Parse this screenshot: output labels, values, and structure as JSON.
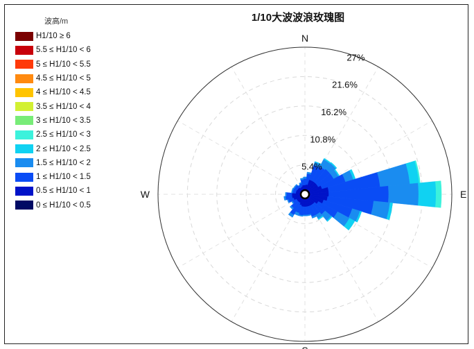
{
  "chart_data": {
    "type": "rose",
    "title": "1/10大波波浪玫瑰图",
    "legend_title": "波高/m",
    "directions": [
      "N",
      "E",
      "S",
      "W"
    ],
    "radial_ticks": [
      "5.4%",
      "10.8%",
      "16.2%",
      "21.6%",
      "27%"
    ],
    "radial_values": [
      5.4,
      10.8,
      16.2,
      21.6,
      27
    ],
    "rmax": 27,
    "legend": [
      {
        "label": "H1/10 ≥ 6",
        "color": "#7a0000"
      },
      {
        "label": "5.5 ≤ H1/10 < 6",
        "color": "#c8000a"
      },
      {
        "label": "5 ≤ H1/10 < 5.5",
        "color": "#ff3a0a"
      },
      {
        "label": "4.5 ≤ H1/10 < 5",
        "color": "#ff8a10"
      },
      {
        "label": "4 ≤ H1/10 < 4.5",
        "color": "#ffc400"
      },
      {
        "label": "3.5 ≤ H1/10 < 4",
        "color": "#d2f032"
      },
      {
        "label": "3 ≤ H1/10 < 3.5",
        "color": "#78ec78"
      },
      {
        "label": "2.5 ≤ H1/10 < 3",
        "color": "#3cf2dc"
      },
      {
        "label": "2 ≤ H1/10 < 2.5",
        "color": "#10d2f2"
      },
      {
        "label": "1.5 ≤ H1/10 < 2",
        "color": "#1a8cf0"
      },
      {
        "label": "1 ≤ H1/10 < 1.5",
        "color": "#0a4cf5"
      },
      {
        "label": "0.5 ≤ H1/10 < 1",
        "color": "#0012c8"
      },
      {
        "label": "0 ≤ H1/10 < 0.5",
        "color": "#000a64"
      }
    ],
    "bin_order": [
      "0-0.5",
      "0.5-1",
      "1-1.5",
      "1.5-2",
      "2-2.5",
      "2.5-3"
    ],
    "bin_colors": [
      "#000a64",
      "#0012c8",
      "#0a4cf5",
      "#1a8cf0",
      "#10d2f2",
      "#3cf2dc"
    ],
    "sectors": [
      {
        "dir": 0,
        "values": [
          0.2,
          1.5,
          1.2,
          0.3,
          0,
          0
        ]
      },
      {
        "dir": 11.25,
        "values": [
          0.2,
          1.6,
          2.0,
          0.3,
          0,
          0
        ]
      },
      {
        "dir": 22.5,
        "values": [
          0.3,
          2.5,
          2.8,
          0.6,
          0.1,
          0
        ]
      },
      {
        "dir": 33.75,
        "values": [
          0.3,
          2.5,
          3.0,
          1.5,
          0.2,
          0
        ]
      },
      {
        "dir": 45,
        "values": [
          0.3,
          2.5,
          3.2,
          1.4,
          0.2,
          0
        ]
      },
      {
        "dir": 56.25,
        "values": [
          0.3,
          2.5,
          3.2,
          1.0,
          0.2,
          0
        ]
      },
      {
        "dir": 67.5,
        "values": [
          0.3,
          3.0,
          4.5,
          1.5,
          0.4,
          0
        ]
      },
      {
        "dir": 78.75,
        "values": [
          0.4,
          4.0,
          9.5,
          5.5,
          1.7,
          0.2
        ]
      },
      {
        "dir": 90,
        "values": [
          0.4,
          4.0,
          11.0,
          5.5,
          3.2,
          1.0
        ]
      },
      {
        "dir": 101.25,
        "values": [
          0.4,
          3.8,
          8.5,
          3.0,
          0.5,
          0
        ]
      },
      {
        "dir": 112.5,
        "values": [
          0.4,
          3.2,
          5.5,
          1.5,
          0.3,
          0
        ]
      },
      {
        "dir": 123.75,
        "values": [
          0.3,
          2.5,
          4.0,
          2.5,
          1.1,
          0
        ]
      },
      {
        "dir": 135,
        "values": [
          0.3,
          2.0,
          2.5,
          1.5,
          0.2,
          0
        ]
      },
      {
        "dir": 146.25,
        "values": [
          0.3,
          2.0,
          2.0,
          0.8,
          0.2,
          0
        ]
      },
      {
        "dir": 157.5,
        "values": [
          0.3,
          2.0,
          2.0,
          0.3,
          0,
          0
        ]
      },
      {
        "dir": 168.75,
        "values": [
          0.3,
          2.0,
          1.5,
          0.2,
          0,
          0
        ]
      },
      {
        "dir": 180,
        "values": [
          0.3,
          2.0,
          1.5,
          0.2,
          0,
          0
        ]
      },
      {
        "dir": 191.25,
        "values": [
          0.3,
          2.0,
          1.6,
          0.2,
          0,
          0
        ]
      },
      {
        "dir": 202.5,
        "values": [
          0.3,
          1.8,
          1.5,
          0.5,
          0,
          0
        ]
      },
      {
        "dir": 213.75,
        "values": [
          0.3,
          1.5,
          2.5,
          0.5,
          0,
          0
        ]
      },
      {
        "dir": 225,
        "values": [
          0.3,
          1.5,
          1.5,
          0.3,
          0,
          0
        ]
      },
      {
        "dir": 236.25,
        "values": [
          0.3,
          1.5,
          0.8,
          0.2,
          0,
          0
        ]
      },
      {
        "dir": 247.5,
        "values": [
          0.4,
          1.8,
          1.0,
          0.2,
          0,
          0
        ]
      },
      {
        "dir": 258.75,
        "values": [
          0.4,
          2.0,
          1.2,
          0.3,
          0,
          0
        ]
      },
      {
        "dir": 270,
        "values": [
          0.4,
          2.0,
          1.0,
          0.2,
          0,
          0
        ]
      },
      {
        "dir": 281.25,
        "values": [
          0.3,
          1.4,
          0.6,
          0.2,
          0,
          0
        ]
      },
      {
        "dir": 292.5,
        "values": [
          0.3,
          1.4,
          0.6,
          0.2,
          0,
          0
        ]
      },
      {
        "dir": 303.75,
        "values": [
          0.3,
          1.3,
          0.6,
          0.2,
          0,
          0
        ]
      },
      {
        "dir": 315,
        "values": [
          0.3,
          1.3,
          0.6,
          0.2,
          0,
          0
        ]
      },
      {
        "dir": 326.25,
        "values": [
          0.2,
          1.2,
          0.5,
          0.1,
          0,
          0
        ]
      },
      {
        "dir": 337.5,
        "values": [
          0.2,
          1.3,
          0.6,
          0.2,
          0,
          0
        ]
      },
      {
        "dir": 348.75,
        "values": [
          0.2,
          1.5,
          1.0,
          0.3,
          0,
          0
        ]
      }
    ]
  }
}
